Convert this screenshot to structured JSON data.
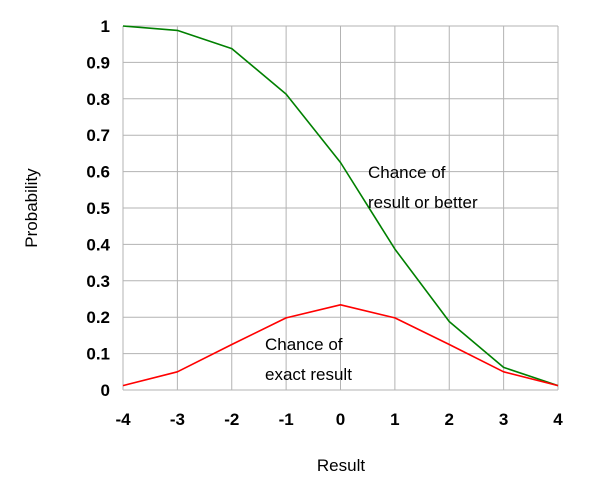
{
  "chart_data": {
    "type": "line",
    "x": [
      -4,
      -3,
      -2,
      -1,
      0,
      1,
      2,
      3,
      4
    ],
    "xlabel": "Result",
    "ylabel": "Probability",
    "xlim": [
      -4,
      4
    ],
    "ylim": [
      0,
      1
    ],
    "x_ticks": [
      "-4",
      "-3",
      "-2",
      "-1",
      "0",
      "1",
      "2",
      "3",
      "4"
    ],
    "y_ticks": [
      "0",
      "0.1",
      "0.2",
      "0.3",
      "0.4",
      "0.5",
      "0.6",
      "0.7",
      "0.8",
      "0.9",
      "1"
    ],
    "grid": true,
    "series": [
      {
        "values": [
          1.0,
          0.988,
          0.938,
          0.813,
          0.625,
          0.387,
          0.188,
          0.062,
          0.012
        ],
        "color": "#008000"
      },
      {
        "values": [
          0.012,
          0.05,
          0.125,
          0.198,
          0.234,
          0.198,
          0.125,
          0.05,
          0.012
        ],
        "color": "#ff0000"
      }
    ],
    "annotations": [
      {
        "lines": [
          "Chance of",
          "result or better"
        ],
        "series_index": 0
      },
      {
        "lines": [
          "Chance of",
          "exact result"
        ],
        "series_index": 1
      }
    ]
  }
}
